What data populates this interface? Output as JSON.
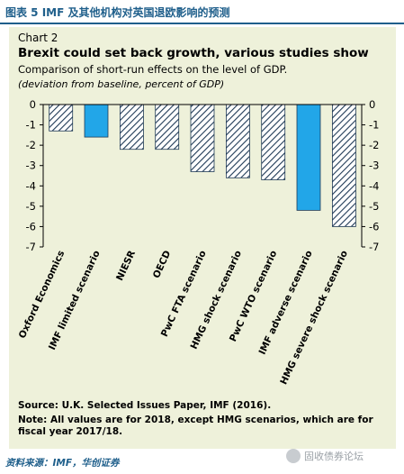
{
  "figure": {
    "title": "图表 5   IMF 及其他机构对英国退欧影响的预测",
    "source": "资料来源：IMF，华创证券",
    "watermark": "固收债券论坛"
  },
  "panel": {
    "label": "Chart 2",
    "title": "Brexit could set back growth, various studies show",
    "subtitle": "Comparison of short-run effects on the level of GDP.",
    "unit": "(deviation from baseline, percent of GDP)",
    "source": "Source: U.K. Selected Issues Paper, IMF (2016).",
    "note": "Note: All values are for 2018, except HMG scenarios, which are for fiscal year 2017/18."
  },
  "colors": {
    "imf_fill": "#22a6e8",
    "hatch": "#1f3a56",
    "panel_bg": "#eef1da",
    "accent": "#1f5f8b"
  },
  "chart_data": {
    "type": "bar",
    "title": "Brexit could set back growth, various studies show",
    "subtitle": "Comparison of short-run effects on the level of GDP.",
    "ylabel": "(deviation from baseline, percent of GDP)",
    "categories": [
      "Oxford Economics",
      "IMF limited scenario",
      "NIESR",
      "OECD",
      "PwC FTA scenario",
      "HMG shock scenario",
      "PwC WTO scenario",
      "IMF adverse scenario",
      "HMG severe shock scenario"
    ],
    "values": [
      -1.3,
      -1.6,
      -2.2,
      -2.2,
      -3.3,
      -3.6,
      -3.7,
      -5.2,
      -6.0
    ],
    "styles": [
      "hatched",
      "solid",
      "hatched",
      "hatched",
      "hatched",
      "hatched",
      "hatched",
      "solid",
      "hatched"
    ],
    "ylim": [
      -7,
      0
    ],
    "yticks": [
      0,
      -1,
      -2,
      -3,
      -4,
      -5,
      -6,
      -7
    ],
    "ytick_labels": [
      "0",
      "-1",
      "-2",
      "-3",
      "-4",
      "-5",
      "-6",
      "-7"
    ],
    "secondary_y_axis": true,
    "grid": false,
    "legend": "none"
  }
}
